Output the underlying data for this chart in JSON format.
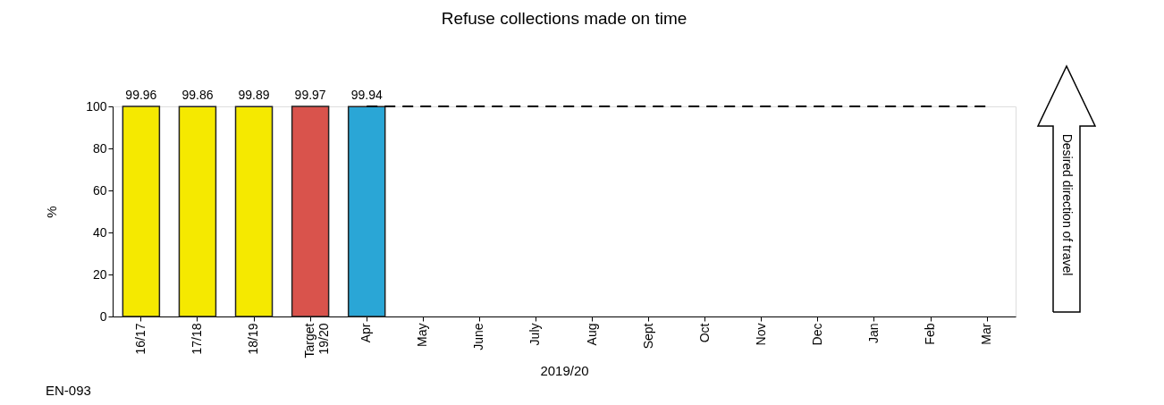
{
  "chart_data": {
    "type": "bar",
    "title": "Refuse collections made on time",
    "xlabel": "2019/20",
    "ylabel": "%",
    "categories": [
      "16/17",
      "17/18",
      "18/19",
      "Target 19/20",
      "Apr",
      "May",
      "June",
      "July",
      "Aug",
      "Sept",
      "Oct",
      "Nov",
      "Dec",
      "Jan",
      "Feb",
      "Mar"
    ],
    "series": [
      {
        "values": [
          99.96,
          99.86,
          99.89,
          99.97,
          99.94,
          null,
          null,
          null,
          null,
          null,
          null,
          null,
          null,
          null,
          null,
          null
        ],
        "colors": [
          "#f5e900",
          "#f5e900",
          "#f5e900",
          "#d9534c",
          "#2aa6d6",
          null,
          null,
          null,
          null,
          null,
          null,
          null,
          null,
          null,
          null,
          null
        ],
        "value_labels": [
          "99.96",
          "99.86",
          "99.89",
          "99.97",
          "99.94",
          null,
          null,
          null,
          null,
          null,
          null,
          null,
          null,
          null,
          null,
          null
        ]
      },
      {
        "type": "line",
        "color": "#000000",
        "line_style": "dashed",
        "marker": "none",
        "values": [
          null,
          null,
          null,
          null,
          100,
          100,
          100,
          100,
          100,
          100,
          100,
          100,
          100,
          100,
          100,
          100
        ]
      }
    ],
    "ylim": [
      0,
      100
    ],
    "yticks": [
      0,
      20,
      40,
      60,
      80,
      100
    ],
    "grid": false,
    "annotations": [
      "Desired direction of travel",
      "EN-093"
    ]
  }
}
